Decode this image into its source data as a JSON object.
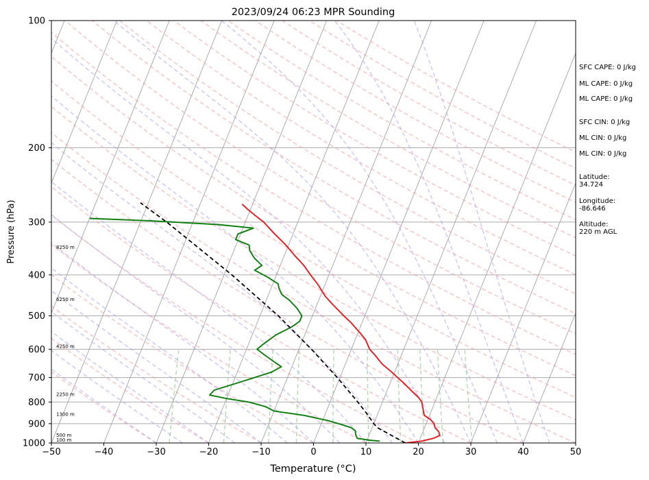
{
  "chart_data": {
    "type": "skew-t",
    "title": "2023/09/24 06:23 MPR Sounding",
    "xlabel": "Temperature (°C)",
    "ylabel": "Pressure (hPa)",
    "xlim": [
      -50,
      50
    ],
    "ylim": [
      1000,
      100
    ],
    "y_scale": "log",
    "x_ticks": [
      "−50",
      "−40",
      "−30",
      "−20",
      "−10",
      "0",
      "10",
      "20",
      "30",
      "40",
      "50"
    ],
    "y_ticks": [
      "1000",
      "900",
      "800",
      "700",
      "600",
      "500",
      "400",
      "300",
      "200",
      "100"
    ],
    "grid": true,
    "colors": {
      "temperature": "#e41a1c",
      "dewpoint": "#0a7d0a",
      "parcel": "#000000",
      "isotherm": "#999999",
      "dry_adiabat": "#f4a0a0",
      "moist_adiabat": "#a99cf0",
      "mixing_ratio": "#8fcc8f",
      "isobar": "#aaaaaa"
    },
    "height_labels": [
      {
        "p": 1000,
        "label": "100 m"
      },
      {
        "p": 975,
        "label": "500 m"
      },
      {
        "p": 870,
        "label": "1300 m"
      },
      {
        "p": 780,
        "label": "2250 m"
      },
      {
        "p": 600,
        "label": "4250 m"
      },
      {
        "p": 465,
        "label": "6250 m"
      },
      {
        "p": 350,
        "label": "8250 m"
      }
    ],
    "series": [
      {
        "name": "",
        "role": "temperature",
        "points": [
          {
            "p": 1000,
            "t": 17.5
          },
          {
            "p": 990,
            "t": 20.5
          },
          {
            "p": 975,
            "t": 22.5
          },
          {
            "p": 960,
            "t": 23.5
          },
          {
            "p": 940,
            "t": 23.0
          },
          {
            "p": 920,
            "t": 22.0
          },
          {
            "p": 900,
            "t": 21.5
          },
          {
            "p": 880,
            "t": 20.5
          },
          {
            "p": 860,
            "t": 19.0
          },
          {
            "p": 840,
            "t": 18.5
          },
          {
            "p": 820,
            "t": 18.0
          },
          {
            "p": 800,
            "t": 17.5
          },
          {
            "p": 780,
            "t": 16.5
          },
          {
            "p": 750,
            "t": 14.5
          },
          {
            "p": 720,
            "t": 12.5
          },
          {
            "p": 700,
            "t": 11.0
          },
          {
            "p": 680,
            "t": 9.5
          },
          {
            "p": 650,
            "t": 7.0
          },
          {
            "p": 620,
            "t": 5.0
          },
          {
            "p": 600,
            "t": 3.5
          },
          {
            "p": 570,
            "t": 2.0
          },
          {
            "p": 550,
            "t": 0.5
          },
          {
            "p": 520,
            "t": -2.0
          },
          {
            "p": 500,
            "t": -4.0
          },
          {
            "p": 470,
            "t": -7.0
          },
          {
            "p": 450,
            "t": -9.0
          },
          {
            "p": 420,
            "t": -11.5
          },
          {
            "p": 400,
            "t": -13.5
          },
          {
            "p": 380,
            "t": -15.5
          },
          {
            "p": 360,
            "t": -18.0
          },
          {
            "p": 340,
            "t": -20.5
          },
          {
            "p": 320,
            "t": -23.5
          },
          {
            "p": 300,
            "t": -26.5
          },
          {
            "p": 290,
            "t": -28.5
          },
          {
            "p": 280,
            "t": -30.5
          },
          {
            "p": 272,
            "t": -32.0
          }
        ]
      },
      {
        "name": "",
        "role": "dewpoint",
        "points": [
          {
            "p": 990,
            "t": 12.5
          },
          {
            "p": 985,
            "t": 10.5
          },
          {
            "p": 975,
            "t": 8.0
          },
          {
            "p": 960,
            "t": 7.5
          },
          {
            "p": 935,
            "t": 7.0
          },
          {
            "p": 920,
            "t": 6.0
          },
          {
            "p": 905,
            "t": 4.0
          },
          {
            "p": 885,
            "t": 1.0
          },
          {
            "p": 860,
            "t": -4.0
          },
          {
            "p": 840,
            "t": -10.0
          },
          {
            "p": 820,
            "t": -12.0
          },
          {
            "p": 800,
            "t": -15.5
          },
          {
            "p": 785,
            "t": -20.0
          },
          {
            "p": 770,
            "t": -23.5
          },
          {
            "p": 750,
            "t": -23.0
          },
          {
            "p": 720,
            "t": -19.0
          },
          {
            "p": 680,
            "t": -13.5
          },
          {
            "p": 660,
            "t": -12.0
          },
          {
            "p": 640,
            "t": -14.0
          },
          {
            "p": 620,
            "t": -16.0
          },
          {
            "p": 600,
            "t": -18.0
          },
          {
            "p": 580,
            "t": -17.0
          },
          {
            "p": 555,
            "t": -15.5
          },
          {
            "p": 530,
            "t": -13.0
          },
          {
            "p": 515,
            "t": -12.0
          },
          {
            "p": 500,
            "t": -12.0
          },
          {
            "p": 480,
            "t": -13.5
          },
          {
            "p": 460,
            "t": -15.5
          },
          {
            "p": 445,
            "t": -17.5
          },
          {
            "p": 430,
            "t": -18.5
          },
          {
            "p": 420,
            "t": -19.0
          },
          {
            "p": 405,
            "t": -21.5
          },
          {
            "p": 390,
            "t": -24.5
          },
          {
            "p": 380,
            "t": -23.5
          },
          {
            "p": 365,
            "t": -25.5
          },
          {
            "p": 350,
            "t": -27.0
          },
          {
            "p": 340,
            "t": -27.5
          },
          {
            "p": 330,
            "t": -30.5
          },
          {
            "p": 320,
            "t": -30.5
          },
          {
            "p": 310,
            "t": -28.0
          },
          {
            "p": 304,
            "t": -35.0
          },
          {
            "p": 298,
            "t": -48.0
          },
          {
            "p": 294,
            "t": -60.0
          }
        ]
      },
      {
        "name": "",
        "role": "parcel",
        "points": [
          {
            "p": 1000,
            "t": 17.5
          },
          {
            "p": 920,
            "t": 11.0
          },
          {
            "p": 900,
            "t": 10.0
          },
          {
            "p": 850,
            "t": 7.8
          },
          {
            "p": 800,
            "t": 5.3
          },
          {
            "p": 700,
            "t": -0.5
          },
          {
            "p": 600,
            "t": -7.6
          },
          {
            "p": 500,
            "t": -16.5
          },
          {
            "p": 400,
            "t": -28.5
          },
          {
            "p": 300,
            "t": -45.0
          },
          {
            "p": 270,
            "t": -51.5
          }
        ]
      }
    ],
    "stats": {
      "sfc_cape": "SFC CAPE: 0 J/kg",
      "ml_cape": "ML CAPE: 0 J/kg",
      "ml_cape_2": "ML CAPE: 0 J/kg",
      "sfc_cin": "SFC CIN: 0 J/kg",
      "ml_cin": "ML CIN: 0 J/kg",
      "ml_cin_2": "ML CIN: 0 J/kg",
      "latitude_label": "Latitude:",
      "latitude_value": "34.724",
      "longitude_label": "Longitude:",
      "longitude_value": "-86.646",
      "altitude_label": "Altitude:",
      "altitude_value": "220 m AGL"
    }
  }
}
